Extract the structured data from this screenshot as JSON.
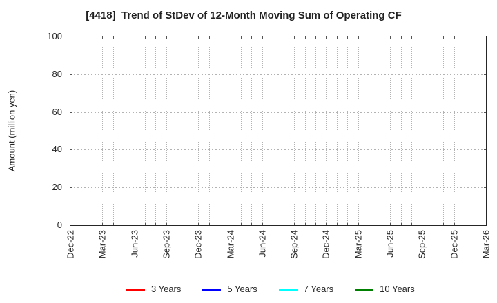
{
  "colors": {
    "background": "#ffffff",
    "text": "#262626",
    "title_text": "#212121",
    "grid": "#b3b3b3",
    "axis": "#262626",
    "tick": "#555555"
  },
  "chart_data": {
    "type": "line",
    "title": "[4418]  Trend of StDev of 12-Month Moving Sum of Operating CF",
    "xlabel": "",
    "ylabel": "Amount (million yen)",
    "ylim": [
      0,
      100
    ],
    "yticks": [
      0,
      20,
      40,
      60,
      80,
      100
    ],
    "x_tick_labels": [
      "Dec-22",
      "Mar-23",
      "Jun-23",
      "Sep-23",
      "Dec-23",
      "Mar-24",
      "Jun-24",
      "Sep-24",
      "Dec-24",
      "Mar-25",
      "Jun-25",
      "Sep-25",
      "Dec-25",
      "Mar-26"
    ],
    "months_between_labeled_ticks": 3,
    "total_month_intervals": 39,
    "grid": "dotted, monthly vertical lines and horizontal lines at each ytick",
    "legend_position": "bottom",
    "series": [
      {
        "name": "3 Years",
        "color": "#ff0000",
        "values": []
      },
      {
        "name": "5 Years",
        "color": "#0000ff",
        "values": []
      },
      {
        "name": "7 Years",
        "color": "#00ffff",
        "values": []
      },
      {
        "name": "10 Years",
        "color": "#008000",
        "values": []
      }
    ]
  }
}
